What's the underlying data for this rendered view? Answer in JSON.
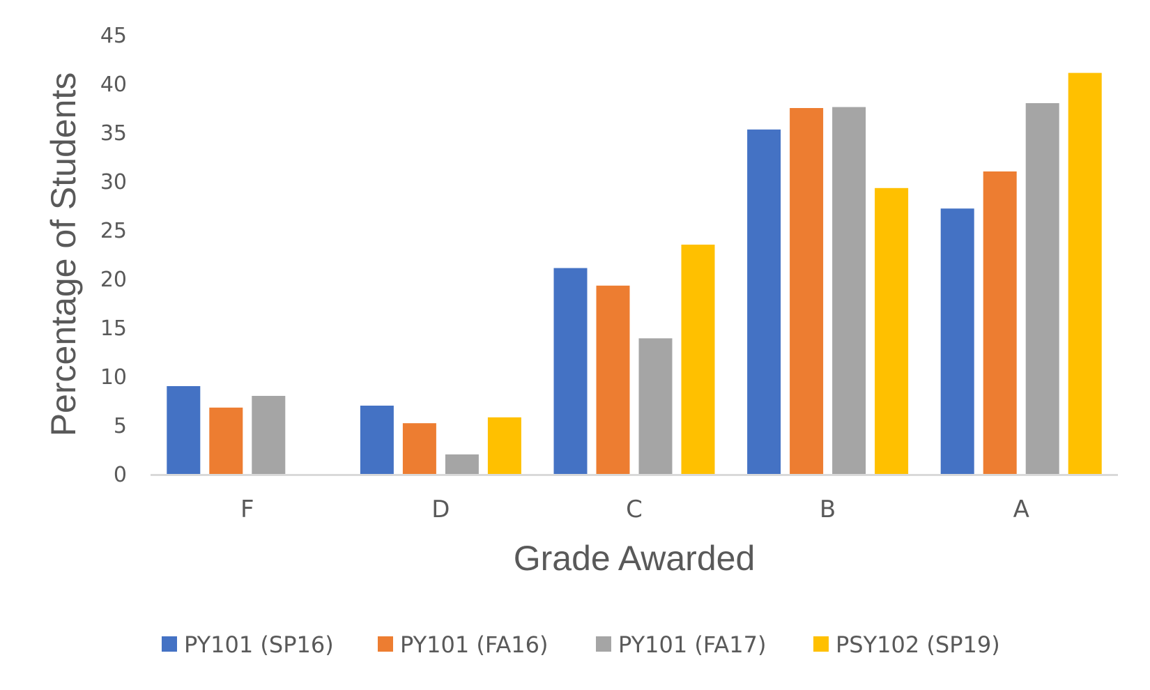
{
  "chart_data": {
    "type": "bar",
    "title": "",
    "xlabel": "Grade Awarded",
    "ylabel": "Percentage of Students",
    "categories": [
      "F",
      "D",
      "C",
      "B",
      "A"
    ],
    "ylim": [
      0,
      45
    ],
    "yticks": [
      0,
      5,
      10,
      15,
      20,
      25,
      30,
      35,
      40,
      45
    ],
    "grid": false,
    "legend_position": "bottom",
    "series": [
      {
        "name": "PY101 (SP16)",
        "color": "#4472C4",
        "values": [
          9.0,
          7.0,
          21.1,
          35.3,
          27.2
        ]
      },
      {
        "name": "PY101 (FA16)",
        "color": "#ED7D31",
        "values": [
          6.8,
          5.2,
          19.3,
          37.5,
          31.0
        ]
      },
      {
        "name": "PY101 (FA17)",
        "color": "#A5A5A5",
        "values": [
          8.0,
          2.0,
          13.9,
          37.6,
          38.0
        ]
      },
      {
        "name": "PSY102 (SP19)",
        "color": "#FFC000",
        "values": [
          0,
          5.8,
          23.5,
          29.3,
          41.1
        ]
      }
    ]
  }
}
